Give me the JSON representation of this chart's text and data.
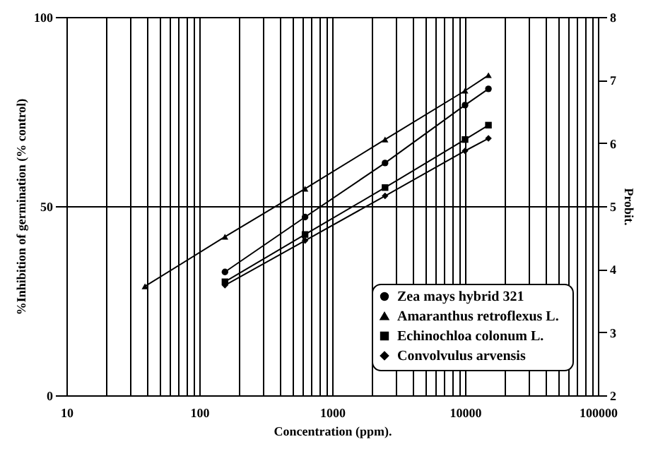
{
  "chart_data": {
    "type": "line",
    "xlabel": "Concentration (ppm).",
    "ylabel": "%Inhibition of germination  (% control)",
    "y2label": "Probit.",
    "log": "x",
    "xlim": [
      10,
      100000
    ],
    "ylim": [
      0,
      100
    ],
    "y2lim": [
      2,
      8
    ],
    "xticks": [
      10,
      {
        "value": 20,
        "label": null
      },
      {
        "value": 30,
        "label": null
      },
      {
        "value": 40,
        "label": null
      },
      {
        "value": 50,
        "label": null
      },
      {
        "value": 60,
        "label": null
      },
      {
        "value": 70,
        "label": null
      },
      {
        "value": 80,
        "label": null
      },
      {
        "value": 90,
        "label": null
      },
      100,
      {
        "value": 200,
        "label": null
      },
      {
        "value": 300,
        "label": null
      },
      {
        "value": 400,
        "label": null
      },
      {
        "value": 500,
        "label": null
      },
      {
        "value": 600,
        "label": null
      },
      {
        "value": 700,
        "label": null
      },
      {
        "value": 800,
        "label": null
      },
      {
        "value": 900,
        "label": null
      },
      1000,
      {
        "value": 2000,
        "label": null
      },
      {
        "value": 3000,
        "label": null
      },
      {
        "value": 4000,
        "label": null
      },
      {
        "value": 5000,
        "label": null
      },
      {
        "value": 6000,
        "label": null
      },
      {
        "value": 7000,
        "label": null
      },
      {
        "value": 8000,
        "label": null
      },
      {
        "value": 9000,
        "label": null
      },
      10000,
      {
        "value": 20000,
        "label": null
      },
      {
        "value": 30000,
        "label": null
      },
      {
        "value": 40000,
        "label": null
      },
      {
        "value": 50000,
        "label": null
      },
      {
        "value": 60000,
        "label": null
      },
      {
        "value": 70000,
        "label": null
      },
      {
        "value": 80000,
        "label": null
      },
      {
        "value": 90000,
        "label": null
      },
      100000
    ],
    "yticks": [
      0,
      50,
      100
    ],
    "y2ticks": [
      2,
      3,
      4,
      5,
      6,
      7,
      8
    ],
    "grid": true,
    "legend": "bottom right",
    "line_style": "solid",
    "series": [
      {
        "name": "Zea mays hybrid 321",
        "color": "#000000",
        "marker": "circle",
        "x": [
          156,
          625,
          2500,
          10000,
          15000
        ],
        "values": [
          32.6,
          47.1,
          61.4,
          76.7,
          81.0
        ]
      },
      {
        "name": "Amaranthus   retroflexus L.",
        "color": "#000000",
        "marker": "triangle",
        "x": [
          39,
          156,
          625,
          2500,
          10000,
          15000
        ],
        "values": [
          28.8,
          41.9,
          54.6,
          67.6,
          80.5,
          84.6
        ]
      },
      {
        "name": "Echinochloa colonum L.",
        "color": "#000000",
        "marker": "square",
        "x": [
          156,
          625,
          2500,
          10000,
          15000
        ],
        "values": [
          30.0,
          42.5,
          54.9,
          67.6,
          71.4
        ]
      },
      {
        "name": "Convolvulus arvensis",
        "color": "#000000",
        "marker": "diamond",
        "x": [
          156,
          625,
          2500,
          10000,
          15000
        ],
        "values": [
          29.1,
          40.9,
          52.7,
          64.6,
          67.9
        ]
      }
    ]
  }
}
